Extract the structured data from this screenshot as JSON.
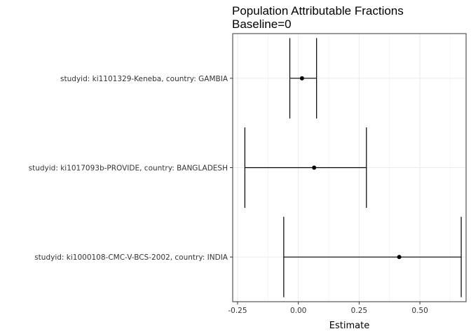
{
  "chart_data": {
    "type": "errorbar",
    "title": "Population Attributable Fractions",
    "subtitle": "Baseline=0",
    "xlabel": "Estimate",
    "ylabel": "",
    "xlim": [
      -0.27,
      0.69
    ],
    "x_ticks": [
      -0.25,
      0.0,
      0.25,
      0.5
    ],
    "x_tick_labels": [
      "-0.25",
      "0.00",
      "0.25",
      "0.50"
    ],
    "categories": [
      "studyid: ki1101329-Keneba, country: GAMBIA",
      "studyid: ki1017093b-PROVIDE, country: BANGLADESH",
      "studyid: ki1000108-CMC-V-BCS-2002, country: INDIA"
    ],
    "series": [
      {
        "estimates": [
          0.015,
          0.065,
          0.415
        ],
        "lower": [
          -0.035,
          -0.22,
          -0.06
        ],
        "upper": [
          0.075,
          0.28,
          0.67
        ]
      }
    ],
    "grid": true,
    "legend": "none"
  }
}
